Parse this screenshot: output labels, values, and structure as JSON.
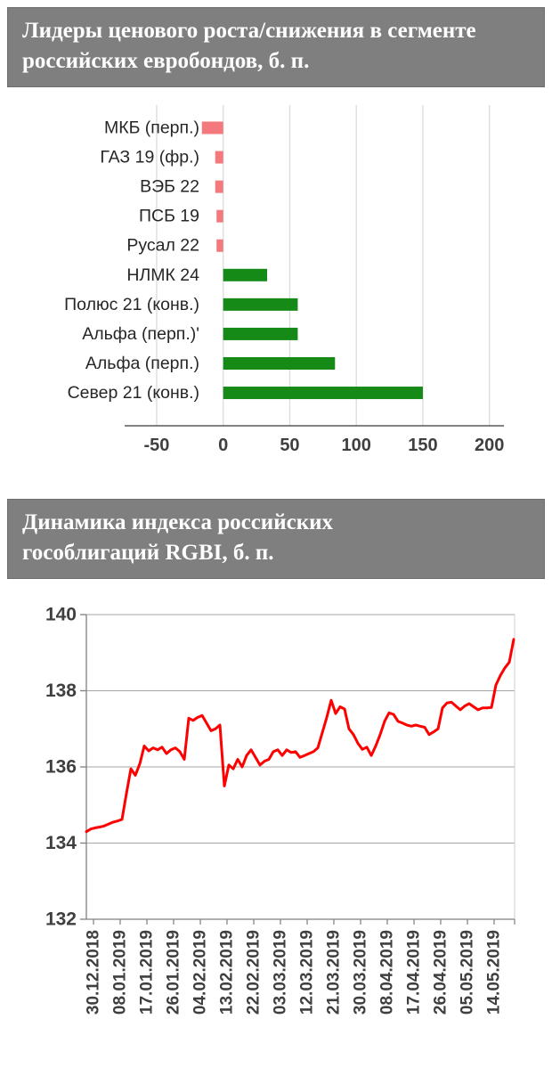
{
  "colors": {
    "header_background": "#7F7F7F",
    "header_text": "#FFFFFF",
    "bar_negative": "#F4797D",
    "bar_positive": "#168A16",
    "line_series": "#FE0000",
    "gridline_bar": "#DCDCDC",
    "gridline_line": "#A6A6A6",
    "axis": "#808080",
    "tick_text": "#3F3F3F"
  },
  "chart_data": [
    {
      "type": "bar",
      "orientation": "horizontal",
      "title": "Лидеры ценового роста/снижения в сегменте российских евробондов, б. п.",
      "categories": [
        "МКБ (перп.)",
        "ГАЗ 19 (фр.)",
        "ВЭБ 22",
        "ПСБ 19",
        "Русал 22",
        "НЛМК 24",
        "Полюс 21 (конв.)",
        "Альфа (перп.)'",
        "Альфа (перп.)",
        "Север 21 (конв.)"
      ],
      "values": [
        -16,
        -6,
        -6,
        -5,
        -5,
        33,
        56,
        56,
        84,
        150
      ],
      "xlim": [
        -50,
        200
      ],
      "xticks": [
        -50,
        0,
        50,
        100,
        150,
        200
      ],
      "grid": true,
      "legend": false,
      "xlabel": "",
      "ylabel": ""
    },
    {
      "type": "line",
      "title": "Динамика индекса российских гособлигаций RGBI, б. п.",
      "x_labels": [
        "30.12.2018",
        "08.01.2019",
        "17.01.2019",
        "26.01.2019",
        "04.02.2019",
        "13.02.2019",
        "22.02.2019",
        "03.03.2019",
        "12.03.2019",
        "21.03.2019",
        "30.03.2019",
        "08.04.2019",
        "17.04.2019",
        "26.04.2019",
        "05.05.2019",
        "14.05.2019"
      ],
      "ylim": [
        132,
        140
      ],
      "yticks": [
        132,
        134,
        136,
        138,
        140
      ],
      "grid": true,
      "legend": false,
      "values": [
        134.3,
        134.37,
        134.4,
        134.42,
        134.45,
        134.5,
        134.55,
        134.58,
        134.62,
        135.3,
        135.95,
        135.78,
        136.08,
        136.55,
        136.42,
        136.5,
        136.45,
        136.52,
        136.35,
        136.45,
        136.5,
        136.4,
        136.2,
        137.28,
        137.22,
        137.3,
        137.35,
        137.15,
        136.95,
        137.0,
        137.1,
        135.5,
        136.05,
        135.95,
        136.2,
        136.0,
        136.3,
        136.45,
        136.25,
        136.05,
        136.15,
        136.2,
        136.4,
        136.45,
        136.3,
        136.45,
        136.38,
        136.4,
        136.25,
        136.3,
        136.35,
        136.4,
        136.5,
        136.9,
        137.3,
        137.75,
        137.4,
        137.58,
        137.52,
        137.0,
        136.85,
        136.62,
        136.46,
        136.52,
        136.3,
        136.55,
        136.85,
        137.2,
        137.42,
        137.38,
        137.2,
        137.15,
        137.1,
        137.07,
        137.1,
        137.07,
        137.04,
        136.85,
        136.92,
        137.0,
        137.55,
        137.68,
        137.7,
        137.6,
        137.5,
        137.6,
        137.66,
        137.58,
        137.5,
        137.55,
        137.55,
        137.56,
        138.15,
        138.4,
        138.6,
        138.75,
        139.35
      ]
    }
  ]
}
